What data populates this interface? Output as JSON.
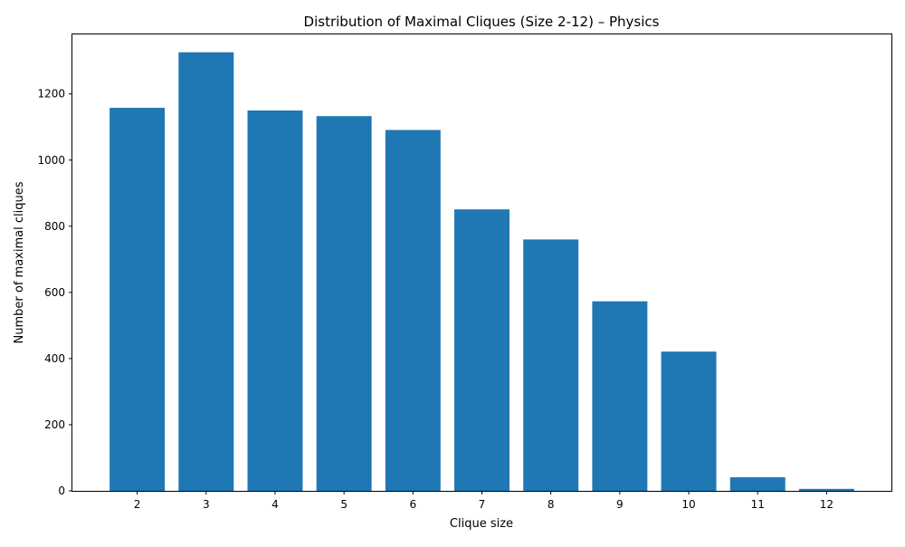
{
  "chart_data": {
    "type": "bar",
    "title": "Distribution of Maximal Cliques (Size 2-12) – Physics",
    "xlabel": "Clique size",
    "ylabel": "Number of maximal cliques",
    "categories": [
      "2",
      "3",
      "4",
      "5",
      "6",
      "7",
      "8",
      "9",
      "10",
      "11",
      "12"
    ],
    "values": [
      1158,
      1326,
      1150,
      1133,
      1091,
      851,
      760,
      573,
      421,
      41,
      6
    ],
    "ylim": [
      0,
      1380
    ],
    "yticks": [
      0,
      200,
      400,
      600,
      800,
      1000,
      1200
    ],
    "grid": false,
    "legend": "none",
    "bar_color": "#1f77b4"
  }
}
